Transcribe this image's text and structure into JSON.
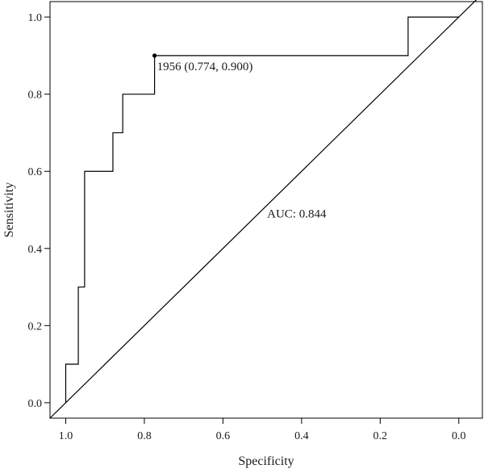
{
  "chart_data": {
    "type": "line",
    "xlabel": "Specificity",
    "ylabel": "Sensitivity",
    "x_reversed": true,
    "xlim": [
      1.04,
      -0.06
    ],
    "ylim": [
      -0.04,
      1.04
    ],
    "x_ticks": [
      1.0,
      0.8,
      0.6,
      0.4,
      0.2,
      0.0
    ],
    "x_tick_labels": [
      "1.0",
      "0.8",
      "0.6",
      "0.4",
      "0.2",
      "0.0"
    ],
    "y_ticks": [
      0.0,
      0.2,
      0.4,
      0.6,
      0.8,
      1.0
    ],
    "y_tick_labels": [
      "0.0",
      "0.2",
      "0.4",
      "0.6",
      "0.8",
      "1.0"
    ],
    "grid": false,
    "series": [
      {
        "specificity": [
          1.0,
          1.0,
          0.968,
          0.968,
          0.952,
          0.952,
          0.88,
          0.88,
          0.855,
          0.855,
          0.845,
          0.845,
          0.774,
          0.774,
          0.129,
          0.129,
          0.0
        ],
        "sensitivity": [
          0.0,
          0.1,
          0.1,
          0.3,
          0.3,
          0.6,
          0.6,
          0.7,
          0.7,
          0.8,
          0.8,
          0.8,
          0.8,
          0.9,
          0.9,
          1.0,
          1.0
        ]
      }
    ],
    "reference_line": {
      "x": [
        1.04,
        -0.06
      ],
      "y": [
        -0.04,
        1.06
      ]
    },
    "threshold_point": {
      "specificity": 0.774,
      "sensitivity": 0.9,
      "label": "1956 (0.774, 0.900)"
    },
    "auc_label": "AUC: 0.844"
  }
}
